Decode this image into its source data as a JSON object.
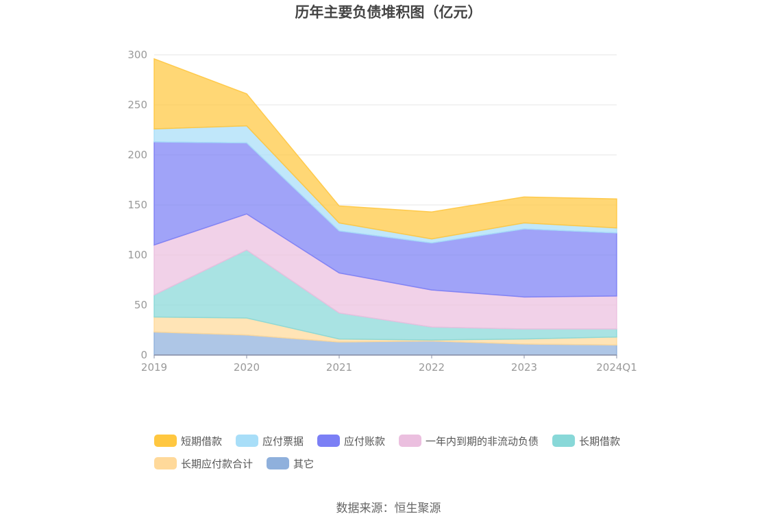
{
  "chart_data": {
    "type": "area",
    "stacked": true,
    "title": "历年主要负债堆积图（亿元）",
    "x": [
      "2019",
      "2020",
      "2021",
      "2022",
      "2023",
      "2024Q1"
    ],
    "ylim": [
      0,
      300
    ],
    "yticks": [
      0,
      50,
      100,
      150,
      200,
      250,
      300
    ],
    "grid": true,
    "legend_position": "bottom",
    "series": [
      {
        "name": "其它",
        "color": "#8fb0dc",
        "values": [
          23,
          20,
          13,
          14,
          11,
          10
        ]
      },
      {
        "name": "长期应付款合计",
        "color": "#ffd99a",
        "values": [
          15,
          17,
          3,
          1,
          5,
          8
        ]
      },
      {
        "name": "长期借款",
        "color": "#88d8d8",
        "values": [
          22,
          68,
          26,
          13,
          10,
          8
        ]
      },
      {
        "name": "一年内到期的非流动负债",
        "color": "#ebbfdf",
        "values": [
          50,
          36,
          40,
          37,
          32,
          33
        ]
      },
      {
        "name": "应付账款",
        "color": "#7b7ff5",
        "values": [
          103,
          71,
          42,
          47,
          68,
          63
        ]
      },
      {
        "name": "应付票据",
        "color": "#a8def8",
        "values": [
          13,
          17,
          8,
          4,
          6,
          5
        ]
      },
      {
        "name": "短期借款",
        "color": "#ffc740",
        "values": [
          70,
          32,
          17,
          27,
          26,
          29
        ]
      }
    ],
    "legend_order": [
      "短期借款",
      "应付票据",
      "应付账款",
      "一年内到期的非流动负债",
      "长期借款",
      "长期应付款合计",
      "其它"
    ]
  },
  "source": "数据来源：恒生聚源"
}
